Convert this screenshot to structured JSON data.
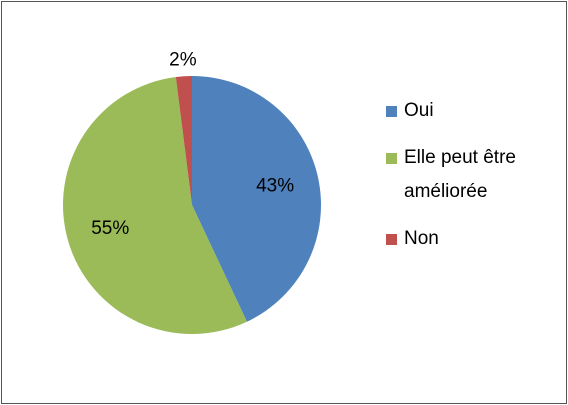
{
  "chart_data": {
    "type": "pie",
    "categories": [
      "Oui",
      "Elle peut être améliorée",
      "Non"
    ],
    "values": [
      43,
      55,
      2
    ],
    "value_labels": [
      "43%",
      "55%",
      "2%"
    ],
    "colors": [
      "#4f81bd",
      "#9bbb59",
      "#c0504d"
    ],
    "legend": "right"
  }
}
